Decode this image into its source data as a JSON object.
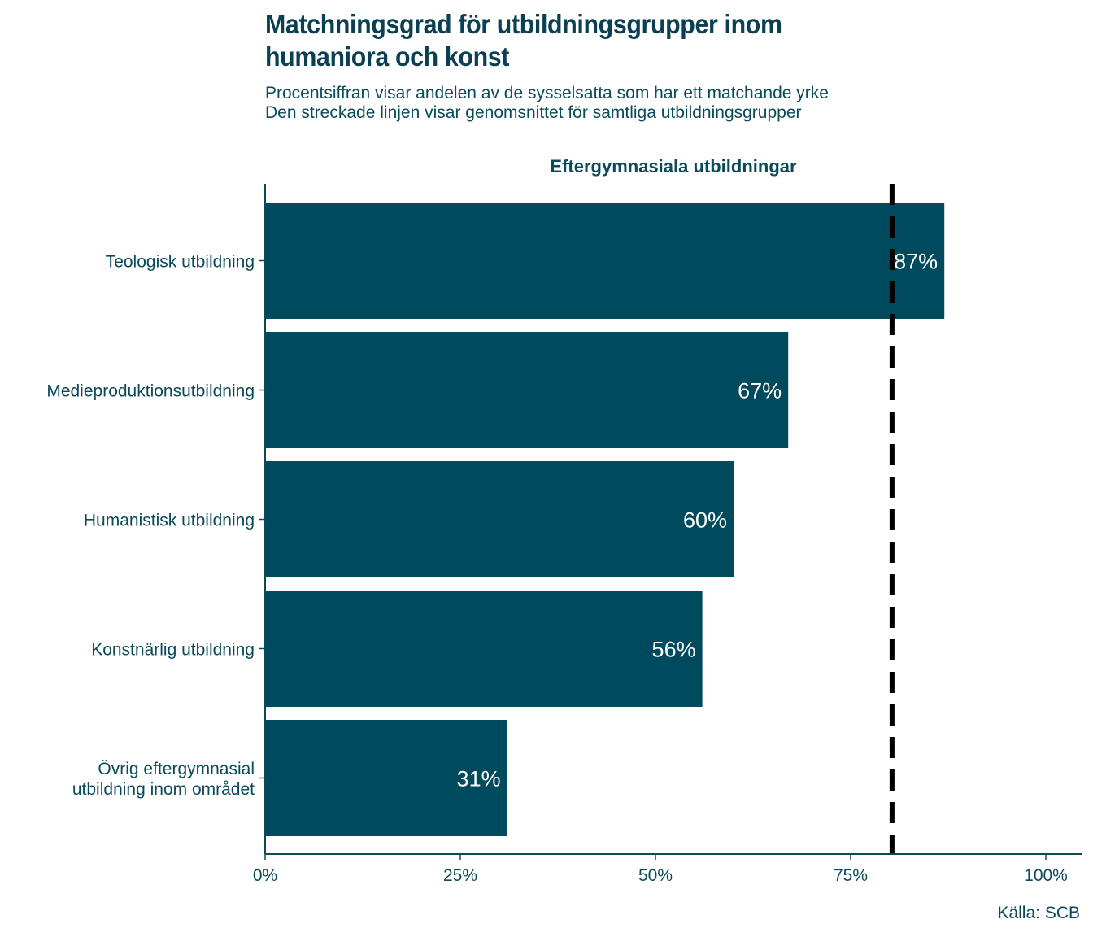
{
  "title_lines": [
    "Matchningsgrad för utbildningsgrupper inom",
    "humaniora och konst"
  ],
  "subtitle_lines": [
    "Procentsiffran visar andelen av de sysselsatta som har ett matchande yrke",
    "Den streckade linjen visar genomsnittet för samtliga utbildningsgrupper"
  ],
  "source": "Källa: SCB",
  "colors": {
    "bar": "#004a5e",
    "text": "#0b4a5b",
    "label": "#ffffff",
    "reference_line": "#000000"
  },
  "chart_data": {
    "type": "bar",
    "orientation": "horizontal",
    "facet_title": "Eftergymnasiala utbildningar",
    "categories": [
      [
        "Teologisk utbildning"
      ],
      [
        "Medieproduktionsutbildning"
      ],
      [
        "Humanistisk utbildning"
      ],
      [
        "Konstnärlig utbildning"
      ],
      [
        "Övrig eftergymnasial",
        "utbildning inom området"
      ]
    ],
    "values": [
      87,
      67,
      60,
      56,
      31
    ],
    "value_labels": [
      "87%",
      "67%",
      "60%",
      "56%",
      "31%"
    ],
    "xlim": [
      0,
      100
    ],
    "xticks": [
      0,
      25,
      50,
      75,
      100
    ],
    "xtick_labels": [
      "0%",
      "25%",
      "50%",
      "75%",
      "100%"
    ],
    "reference_line": 80.3,
    "grid": false
  }
}
